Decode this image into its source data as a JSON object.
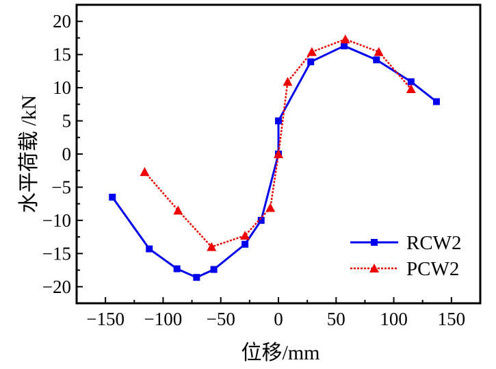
{
  "chart_data": {
    "type": "line",
    "title": "",
    "xlabel": "位移/mm",
    "ylabel": "水平荷载 /kN",
    "xlim": [
      -175,
      175
    ],
    "ylim": [
      -22.5,
      22.5
    ],
    "xticks": [
      -150,
      -100,
      -50,
      0,
      50,
      100,
      150
    ],
    "xtick_labels": [
      "−150",
      "−100",
      "−50",
      "0",
      "50",
      "100",
      "150"
    ],
    "yticks": [
      -20,
      -15,
      -10,
      -5,
      0,
      5,
      10,
      15,
      20
    ],
    "ytick_labels": [
      "−20",
      "−15",
      "−10",
      "−5",
      "0",
      "5",
      "10",
      "15",
      "20"
    ],
    "grid": false,
    "legend_position": "bottom-right",
    "series": [
      {
        "name": "RCW2",
        "color": "#0000ee",
        "marker": "square",
        "line_style": "solid",
        "x": [
          -144,
          -112,
          -88,
          -71,
          -56,
          -29,
          -15,
          0,
          0,
          28,
          57,
          85,
          115,
          137
        ],
        "y": [
          -6.5,
          -14.3,
          -17.3,
          -18.6,
          -17.4,
          -13.6,
          -10.0,
          0,
          5.0,
          13.9,
          16.3,
          14.2,
          10.9,
          7.9
        ]
      },
      {
        "name": "PCW2",
        "color": "#ee0000",
        "marker": "triangle",
        "line_style": "dashed",
        "x": [
          -116,
          -87,
          -58,
          -29,
          -7,
          0,
          8,
          29,
          58,
          87,
          115
        ],
        "y": [
          -2.7,
          -8.5,
          -14.0,
          -12.3,
          -8.1,
          0,
          10.9,
          15.4,
          17.3,
          15.4,
          9.8
        ]
      }
    ]
  }
}
